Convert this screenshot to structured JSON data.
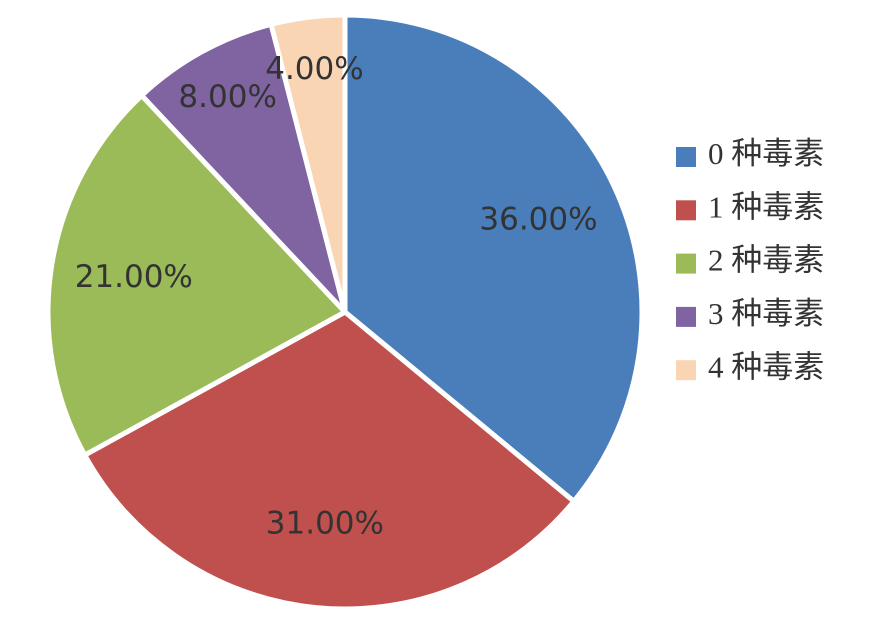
{
  "chart_data": {
    "type": "pie",
    "categories": [
      "0 种毒素",
      "1 种毒素",
      "2 种毒素",
      "3 种毒素",
      "4 种毒素"
    ],
    "values": [
      36,
      31,
      21,
      8,
      4
    ],
    "value_labels": [
      "36.00%",
      "31.00%",
      "21.00%",
      "8.00%",
      "4.00%"
    ],
    "colors": [
      "#4a7ebb",
      "#c0504d",
      "#9bbb59",
      "#8064a2",
      "#f9d5b4"
    ],
    "legend": "right"
  }
}
